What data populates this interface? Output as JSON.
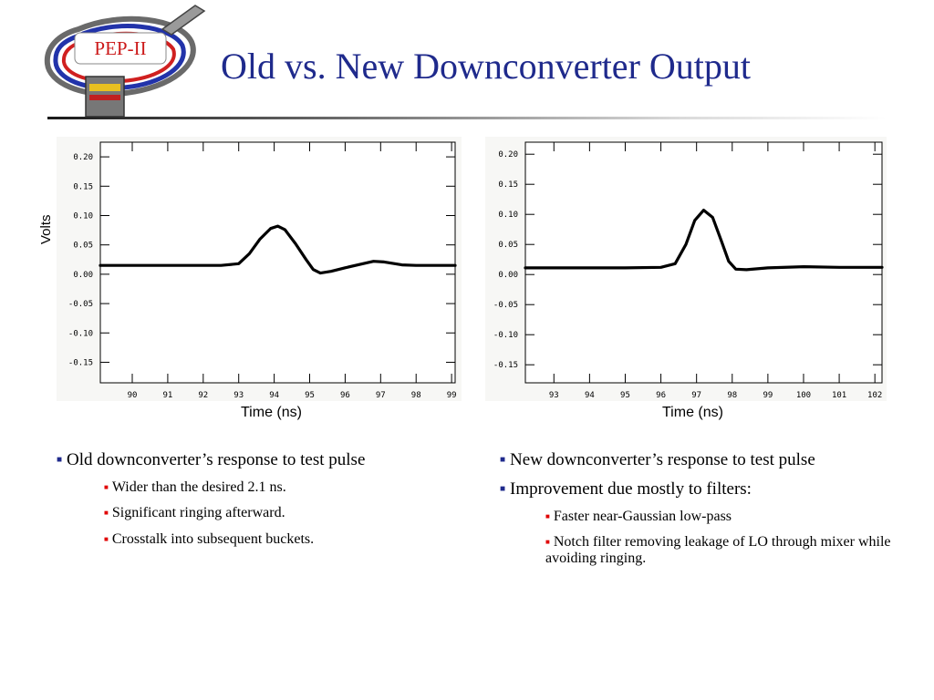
{
  "logo": {
    "text": "PEP-II"
  },
  "title": "Old vs. New Downconverter Output",
  "charts": [
    {
      "id": "old",
      "xlabel": "Time (ns)",
      "ylabel": "Volts",
      "x_ticks": [
        90,
        91,
        92,
        93,
        94,
        95,
        96,
        97,
        98,
        99
      ],
      "y_ticks": [
        "0.20",
        "0.15",
        "0.10",
        "0.05",
        "0.00",
        "-0.05",
        "-0.10",
        "-0.15"
      ]
    },
    {
      "id": "new",
      "xlabel": "Time (ns)",
      "ylabel": "",
      "x_ticks": [
        93,
        94,
        95,
        96,
        97,
        98,
        99,
        100,
        101,
        102
      ],
      "y_ticks": [
        "0.20",
        "0.15",
        "0.10",
        "0.05",
        "0.00",
        "-0.05",
        "-0.10",
        "-0.15"
      ]
    }
  ],
  "left_bullets": {
    "main": "Old downconverter’s response to test pulse",
    "subs": [
      "Wider than the desired 2.1 ns.",
      "Significant ringing afterward.",
      "Crosstalk into subsequent buckets."
    ]
  },
  "right_bullets": {
    "mains": [
      "New downconverter’s response to test pulse",
      "Improvement due mostly to filters:"
    ],
    "subs": [
      "Faster near-Gaussian low-pass",
      "Notch filter removing leakage of LO through mixer while avoiding ringing."
    ]
  },
  "chart_data": [
    {
      "type": "line",
      "xlabel": "Time (ns)",
      "ylabel": "Volts",
      "xlim": [
        89.1,
        99.1
      ],
      "ylim": [
        -0.185,
        0.225
      ],
      "series": [
        {
          "x": [
            89.1,
            90.0,
            91.0,
            92.0,
            92.5,
            93.0,
            93.3,
            93.6,
            93.9,
            94.1,
            94.3,
            94.6,
            94.9,
            95.1,
            95.3,
            95.6,
            96.0,
            96.5,
            96.8,
            97.1,
            97.6,
            98.0,
            99.0,
            99.1
          ],
          "y": [
            0.015,
            0.015,
            0.015,
            0.015,
            0.015,
            0.018,
            0.035,
            0.06,
            0.078,
            0.082,
            0.076,
            0.052,
            0.025,
            0.008,
            0.002,
            0.005,
            0.011,
            0.018,
            0.022,
            0.021,
            0.016,
            0.015,
            0.015,
            0.015
          ]
        }
      ]
    },
    {
      "type": "line",
      "xlabel": "Time (ns)",
      "xlim": [
        92.2,
        102.2
      ],
      "ylim": [
        -0.18,
        0.22
      ],
      "series": [
        {
          "x": [
            92.2,
            93.0,
            94.0,
            95.0,
            96.0,
            96.4,
            96.7,
            96.95,
            97.2,
            97.45,
            97.7,
            97.9,
            98.1,
            98.4,
            99.0,
            100.0,
            101.0,
            102.2
          ],
          "y": [
            0.011,
            0.011,
            0.011,
            0.011,
            0.012,
            0.018,
            0.05,
            0.09,
            0.107,
            0.095,
            0.055,
            0.022,
            0.009,
            0.008,
            0.011,
            0.013,
            0.012,
            0.012
          ]
        }
      ]
    }
  ]
}
